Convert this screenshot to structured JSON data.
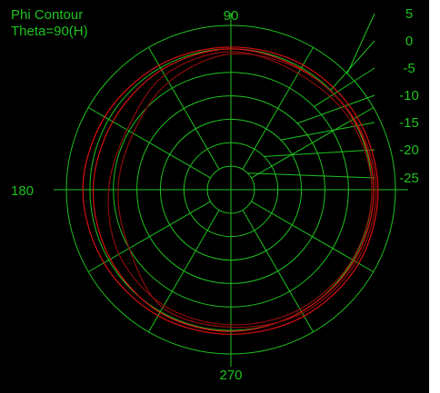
{
  "colors": {
    "background": "#000000",
    "grid": "#1fc21f",
    "label": "#1fc21f",
    "trace": "#d81010",
    "trace_dark": "#8a0c0c",
    "page": "#ffffff"
  },
  "chart_data": {
    "type": "polar",
    "title": "Phi Contour",
    "subtitle": "Theta=90(H)",
    "angle_labels": [
      {
        "text": "90",
        "angle": 90
      },
      {
        "text": "180",
        "angle": 180
      },
      {
        "text": "270",
        "angle": 270
      }
    ],
    "radial_ticks": [
      "5",
      "0",
      "-5",
      "-10",
      "-15",
      "-20",
      "-25"
    ],
    "radial_values": [
      5,
      0,
      -5,
      -10,
      -15,
      -20,
      -25
    ],
    "r_range": [
      -30,
      5
    ],
    "spoke_step_deg": 30,
    "grid": true,
    "series": [
      {
        "style": "bright",
        "phi": [
          0,
          30,
          60,
          90,
          120,
          150,
          180,
          210,
          240,
          270,
          300,
          330,
          360
        ],
        "gain": [
          1.3,
          1.0,
          0.7,
          0.4,
          0.6,
          1.0,
          1.5,
          1.2,
          1.0,
          0.8,
          1.1,
          1.4,
          1.3
        ]
      },
      {
        "style": "bright",
        "phi": [
          0,
          30,
          60,
          90,
          120,
          150,
          180,
          210,
          240,
          270,
          300,
          330,
          360
        ],
        "gain": [
          0.4,
          0.1,
          -0.3,
          0.0,
          -0.5,
          -1.0,
          -0.7,
          -0.4,
          0.2,
          0.2,
          0.0,
          0.3,
          0.4
        ]
      },
      {
        "style": "dark",
        "phi": [
          0,
          30,
          60,
          90,
          120,
          150,
          180,
          210,
          240,
          270,
          300,
          330,
          360
        ],
        "gain": [
          0.9,
          0.3,
          -0.5,
          -1.1,
          -3.5,
          -6.0,
          -6.0,
          -5.0,
          -1.0,
          -0.7,
          0.4,
          0.8,
          0.9
        ]
      },
      {
        "style": "dark",
        "phi": [
          0,
          30,
          60,
          90,
          120,
          150,
          180,
          210,
          240,
          270,
          300,
          330,
          360
        ],
        "gain": [
          0.0,
          -0.6,
          -1.4,
          -0.6,
          -1.8,
          -4.5,
          -4.0,
          -2.5,
          -1.5,
          -1.2,
          -0.6,
          -0.2,
          0.0
        ]
      }
    ]
  }
}
